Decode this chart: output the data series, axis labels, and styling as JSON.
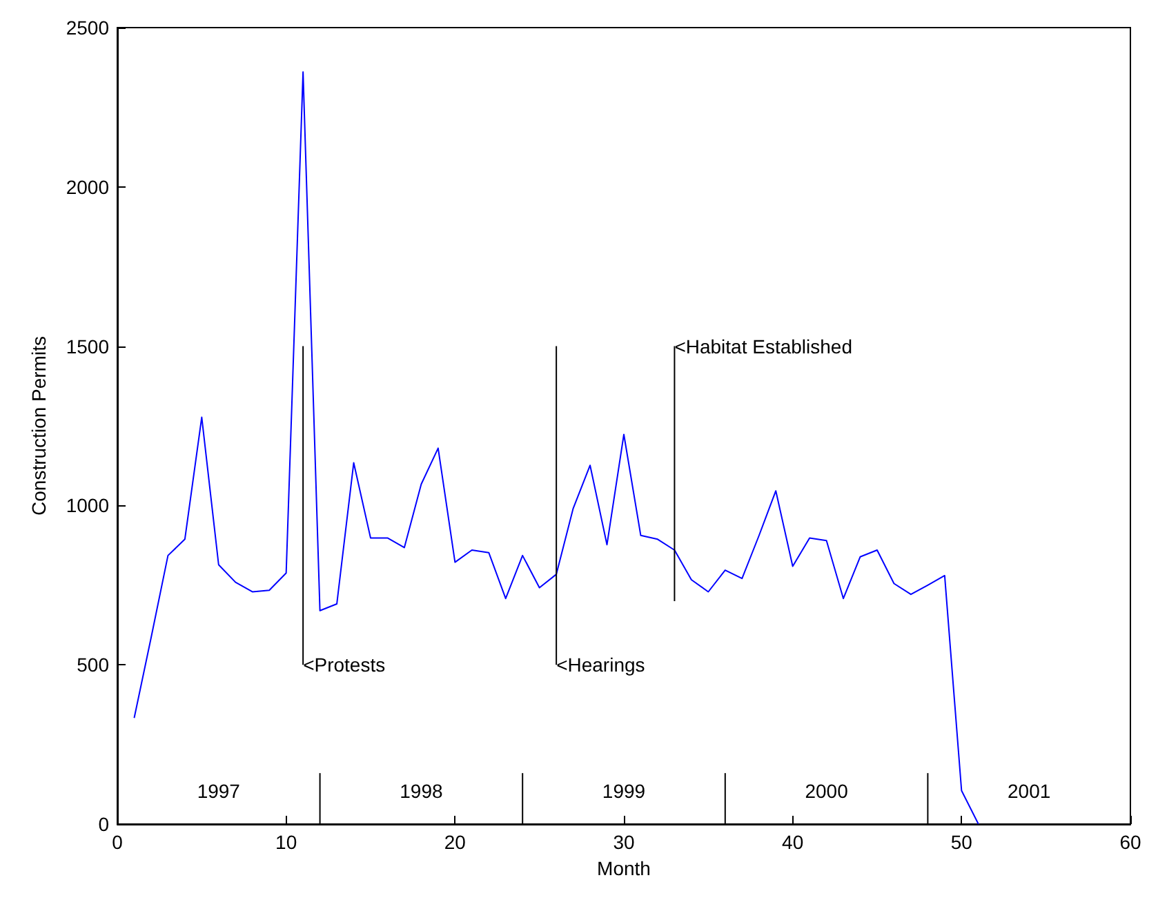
{
  "chart_data": {
    "type": "line",
    "xlabel": "Month",
    "ylabel": "Construction Permits",
    "xlim": [
      0,
      60
    ],
    "xticks": [
      0,
      10,
      20,
      30,
      40,
      50,
      60
    ],
    "ylim": [
      0,
      2500
    ],
    "yticks": [
      0,
      500,
      1000,
      1500,
      2000,
      2500
    ],
    "grid": false,
    "marker": "none",
    "line_style": "solid",
    "x": [
      1,
      2,
      3,
      4,
      5,
      6,
      7,
      8,
      9,
      10,
      11,
      12,
      13,
      14,
      15,
      16,
      17,
      18,
      19,
      20,
      21,
      22,
      23,
      24,
      25,
      26,
      27,
      28,
      29,
      30,
      31,
      32,
      33,
      34,
      35,
      36,
      37,
      38,
      39,
      40,
      41,
      42,
      43,
      44,
      45,
      46,
      47,
      48,
      49,
      50,
      51
    ],
    "series": [
      {
        "color": "#0000ff",
        "values": [
          333,
          585,
          843,
          894,
          1277,
          814,
          759,
          729,
          734,
          788,
          2361,
          670,
          691,
          1134,
          898,
          898,
          868,
          1067,
          1180,
          822,
          860,
          852,
          708,
          843,
          742,
          784,
          991,
          1126,
          877,
          1223,
          906,
          894,
          860,
          767,
          729,
          797,
          771,
          905,
          1046,
          809,
          898,
          890,
          708,
          839,
          860,
          755,
          721,
          750,
          780,
          105,
          0
        ]
      },
      {
        "color": "#000000",
        "x": [
          11,
          11
        ],
        "values": [
          500,
          1500
        ]
      },
      {
        "color": "#000000",
        "x": [
          26,
          26
        ],
        "values": [
          500,
          1500
        ]
      },
      {
        "color": "#000000",
        "x": [
          33,
          33
        ],
        "values": [
          700,
          1500
        ]
      },
      {
        "color": "#000000",
        "x": [
          12,
          12
        ],
        "values": [
          0,
          160
        ]
      },
      {
        "color": "#000000",
        "x": [
          24,
          24
        ],
        "values": [
          0,
          160
        ]
      },
      {
        "color": "#000000",
        "x": [
          36,
          36
        ],
        "values": [
          0,
          160
        ]
      },
      {
        "color": "#000000",
        "x": [
          48,
          48
        ],
        "values": [
          0,
          160
        ]
      }
    ],
    "annotations": [
      {
        "text": "<Protests",
        "x": 11,
        "y": 500
      },
      {
        "text": "<Hearings",
        "x": 26,
        "y": 500
      },
      {
        "text": "<Habitat Established",
        "x": 33,
        "y": 1500
      },
      "1997",
      "1998",
      "1999",
      "2000",
      "2001"
    ]
  }
}
